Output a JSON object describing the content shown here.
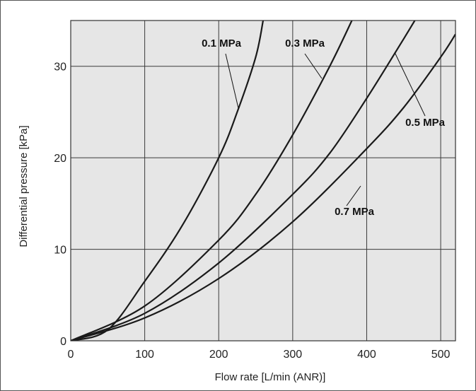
{
  "chart_data": {
    "type": "line",
    "xlabel": "Flow rate [L/min (ANR)]",
    "ylabel": "Differential pressure [kPa]",
    "xlim": [
      0,
      520
    ],
    "ylim": [
      0,
      35
    ],
    "xticks": [
      0,
      100,
      200,
      300,
      400,
      500
    ],
    "yticks": [
      0,
      10,
      20,
      30
    ],
    "grid": true,
    "plot_background": "#e6e6e6",
    "line_color": "#1a1a1a",
    "series": [
      {
        "name": "0.1 MPa",
        "x": [
          0,
          50,
          100,
          150,
          200,
          225,
          250,
          260
        ],
        "y": [
          0,
          1.2,
          6.5,
          12.5,
          20.0,
          25.0,
          31.0,
          35.0
        ]
      },
      {
        "name": "0.3 MPa",
        "x": [
          0,
          100,
          200,
          250,
          300,
          350,
          380
        ],
        "y": [
          0,
          3.8,
          11.0,
          16.0,
          22.5,
          30.0,
          35.0
        ]
      },
      {
        "name": "0.5 MPa",
        "x": [
          0,
          100,
          200,
          300,
          350,
          400,
          450,
          465
        ],
        "y": [
          0,
          3.0,
          8.5,
          16.0,
          20.5,
          26.5,
          33.0,
          35.0
        ]
      },
      {
        "name": "0.7 MPa",
        "x": [
          0,
          100,
          200,
          300,
          400,
          450,
          500,
          520
        ],
        "y": [
          0,
          2.5,
          6.8,
          13.0,
          21.0,
          25.5,
          31.0,
          33.5
        ]
      }
    ]
  }
}
